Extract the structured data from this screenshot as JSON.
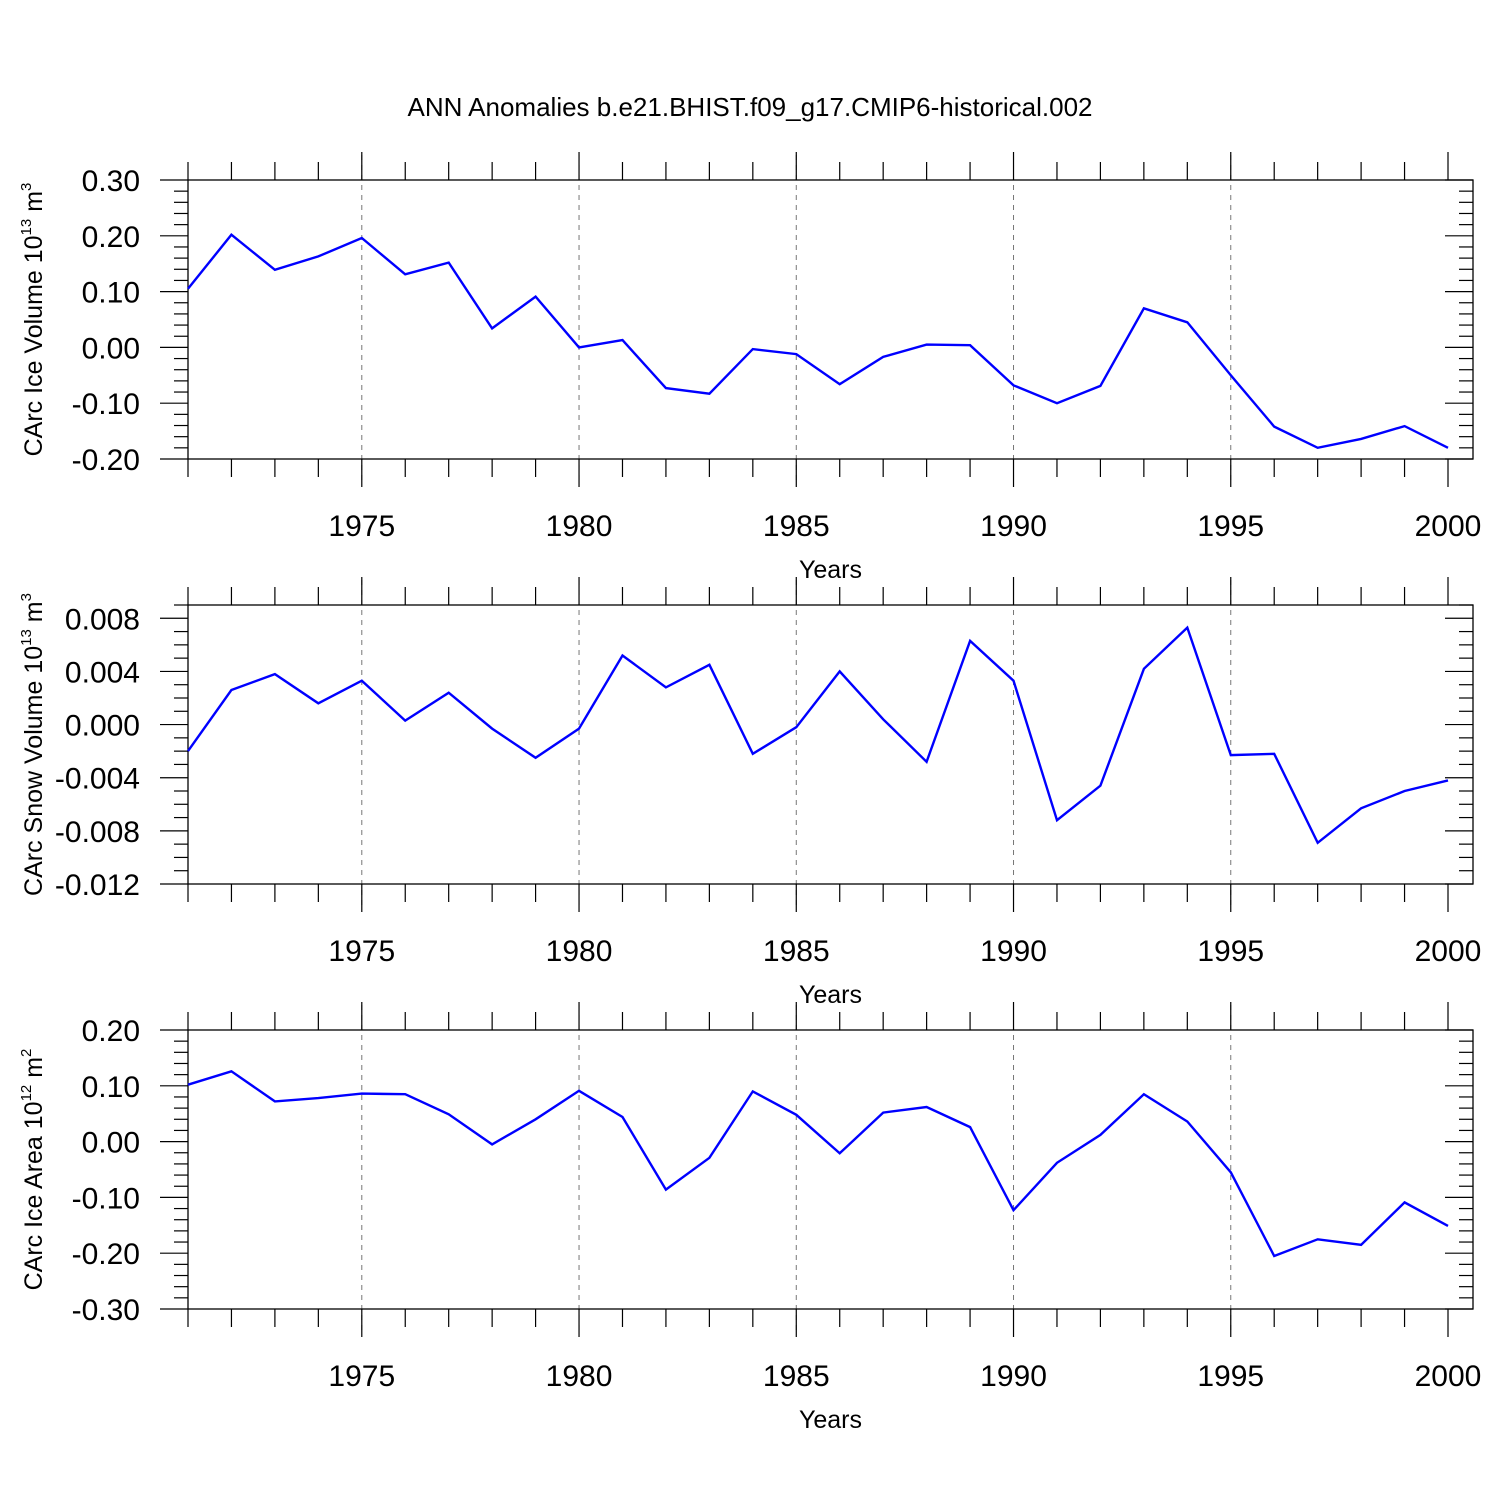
{
  "figure": {
    "title": "ANN Anomalies b.e21.BHIST.f09_g17.CMIP6-historical.002"
  },
  "colors": {
    "series": "#0000ff",
    "axis": "#000000",
    "grid": "#777777"
  },
  "chart_data": [
    {
      "type": "line",
      "ylabel_main": "CArc Ice Volume 10",
      "ylabel_exp": "13",
      "ylabel_unit": " m",
      "ylabel_unit_exp": "3",
      "xlabel": "Years",
      "xlim": [
        1971,
        2000
      ],
      "ylim": [
        -0.2,
        0.3
      ],
      "yticks": [
        -0.2,
        -0.1,
        0.0,
        0.1,
        0.2,
        0.3
      ],
      "ytick_labels": [
        "-0.20",
        "-0.10",
        "0.00",
        "0.10",
        "0.20",
        "0.30"
      ],
      "yminor": 0.02,
      "xticks": [
        1975,
        1980,
        1985,
        1990,
        1995,
        2000
      ],
      "xtick_labels": [
        "1975",
        "1980",
        "1985",
        "1990",
        "1995",
        "2000"
      ],
      "grid_x": true,
      "x": [
        1971,
        1972,
        1973,
        1974,
        1975,
        1976,
        1977,
        1978,
        1979,
        1980,
        1981,
        1982,
        1983,
        1984,
        1985,
        1986,
        1987,
        1988,
        1989,
        1990,
        1991,
        1992,
        1993,
        1994,
        1995,
        1996,
        1997,
        1998,
        1999,
        2000
      ],
      "series": [
        {
          "values": [
            0.105,
            0.202,
            0.139,
            0.163,
            0.196,
            0.131,
            0.152,
            0.034,
            0.091,
            0.0,
            0.013,
            -0.073,
            -0.083,
            -0.003,
            -0.012,
            -0.066,
            -0.017,
            0.005,
            0.004,
            -0.068,
            -0.1,
            -0.069,
            0.07,
            0.045,
            -0.05,
            -0.142,
            -0.18,
            -0.164,
            -0.141,
            -0.18
          ]
        }
      ]
    },
    {
      "type": "line",
      "ylabel_main": "CArc Snow Volume 10",
      "ylabel_exp": "13",
      "ylabel_unit": " m",
      "ylabel_unit_exp": "3",
      "xlabel": "Years",
      "xlim": [
        1971,
        2000
      ],
      "ylim": [
        -0.012,
        0.009
      ],
      "yticks": [
        -0.012,
        -0.008,
        -0.004,
        0.0,
        0.004,
        0.008
      ],
      "ytick_labels": [
        "-0.012",
        "-0.008",
        "-0.004",
        "0.000",
        "0.004",
        "0.008"
      ],
      "yminor": 0.001,
      "xticks": [
        1975,
        1980,
        1985,
        1990,
        1995,
        2000
      ],
      "xtick_labels": [
        "1975",
        "1980",
        "1985",
        "1990",
        "1995",
        "2000"
      ],
      "grid_x": true,
      "x": [
        1971,
        1972,
        1973,
        1974,
        1975,
        1976,
        1977,
        1978,
        1979,
        1980,
        1981,
        1982,
        1983,
        1984,
        1985,
        1986,
        1987,
        1988,
        1989,
        1990,
        1991,
        1992,
        1993,
        1994,
        1995,
        1996,
        1997,
        1998,
        1999,
        2000
      ],
      "series": [
        {
          "values": [
            -0.002,
            0.0026,
            0.0038,
            0.0016,
            0.0033,
            0.0003,
            0.0024,
            -0.0003,
            -0.0025,
            -0.0003,
            0.0052,
            0.0028,
            0.0045,
            -0.0022,
            -0.0002,
            0.004,
            0.0004,
            -0.0028,
            0.0063,
            0.0033,
            -0.0072,
            -0.0046,
            0.0042,
            0.0073,
            -0.0023,
            -0.0022,
            -0.0089,
            -0.0063,
            -0.005,
            -0.0042
          ]
        }
      ]
    },
    {
      "type": "line",
      "ylabel_main": "CArc Ice Area 10",
      "ylabel_exp": "12",
      "ylabel_unit": " m",
      "ylabel_unit_exp": "2",
      "xlabel": "Years",
      "xlim": [
        1971,
        2000
      ],
      "ylim": [
        -0.3,
        0.2
      ],
      "yticks": [
        -0.3,
        -0.2,
        -0.1,
        0.0,
        0.1,
        0.2
      ],
      "ytick_labels": [
        "-0.30",
        "-0.20",
        "-0.10",
        "0.00",
        "0.10",
        "0.20"
      ],
      "yminor": 0.02,
      "xticks": [
        1975,
        1980,
        1985,
        1990,
        1995,
        2000
      ],
      "xtick_labels": [
        "1975",
        "1980",
        "1985",
        "1990",
        "1995",
        "2000"
      ],
      "grid_x": true,
      "x": [
        1971,
        1972,
        1973,
        1974,
        1975,
        1976,
        1977,
        1978,
        1979,
        1980,
        1981,
        1982,
        1983,
        1984,
        1985,
        1986,
        1987,
        1988,
        1989,
        1990,
        1991,
        1992,
        1993,
        1994,
        1995,
        1996,
        1997,
        1998,
        1999,
        2000
      ],
      "series": [
        {
          "values": [
            0.102,
            0.126,
            0.072,
            0.078,
            0.086,
            0.085,
            0.049,
            -0.005,
            0.04,
            0.091,
            0.044,
            -0.086,
            -0.029,
            0.09,
            0.048,
            -0.021,
            0.052,
            0.062,
            0.026,
            -0.123,
            -0.038,
            0.012,
            0.085,
            0.036,
            -0.055,
            -0.205,
            -0.175,
            -0.185,
            -0.109,
            -0.151
          ]
        }
      ]
    }
  ]
}
